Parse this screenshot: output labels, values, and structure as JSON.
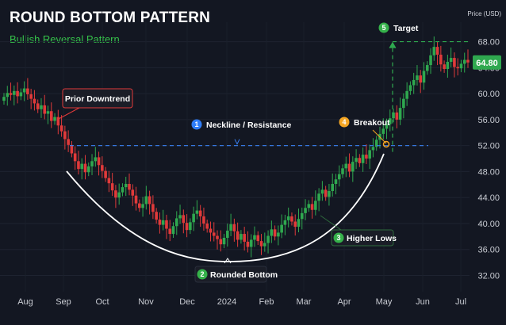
{
  "header": {
    "title": "ROUND BOTTOM PATTERN",
    "subtitle": "Bullish Reversal Pattern",
    "price_axis_unit": "Price (USD)"
  },
  "colors": {
    "background": "#131722",
    "bull": "#2fa84f",
    "bear": "#e03a3a",
    "neckline": "#3b82f6",
    "target": "#2fa84f",
    "curve": "#ffffff",
    "badge_blue": "#2f7df6",
    "badge_green": "#35b14a",
    "badge_orange": "#f5a623"
  },
  "chart_data": {
    "type": "candlestick",
    "x_ticks": [
      "Aug",
      "Sep",
      "Oct",
      "Nov",
      "Dec",
      "2024",
      "Feb",
      "Mar",
      "Apr",
      "May",
      "Jun",
      "Jul"
    ],
    "y_ticks": [
      32.0,
      36.0,
      40.0,
      44.0,
      48.0,
      52.0,
      56.0,
      60.0,
      64.0,
      68.0
    ],
    "ylim": [
      29.5,
      71
    ],
    "last_price": "64.80",
    "neckline_price": 52.0,
    "target_price": 68.0,
    "annotations": [
      {
        "id": "downtrend",
        "label": "Prior Downtrend",
        "number": ""
      },
      {
        "id": "neckline",
        "label": "Neckline / Resistance",
        "number": "1"
      },
      {
        "id": "rounded",
        "label": "Rounded Bottom",
        "number": "2"
      },
      {
        "id": "higherlows",
        "label": "Higher Lows",
        "number": "3"
      },
      {
        "id": "breakout",
        "label": "Breakout",
        "number": "4"
      },
      {
        "id": "target",
        "label": "Target",
        "number": "5"
      }
    ],
    "series": [
      {
        "close_path": [
          59.5,
          60.1,
          59.8,
          60.4,
          59.6,
          60.2,
          60.8,
          59.9,
          59.2,
          58.5,
          57.6,
          58.2,
          56.9,
          57.3,
          55.8,
          56.4,
          55.1,
          54.2,
          53.0,
          52.1,
          50.8,
          49.6,
          48.4,
          49.2,
          47.9,
          48.8,
          49.6,
          50.2,
          49.0,
          48.1,
          47.0,
          46.2,
          45.1,
          44.0,
          44.8,
          45.6,
          46.1,
          45.2,
          44.3,
          43.1,
          42.4,
          43.0,
          44.2,
          43.0,
          41.8,
          40.6,
          39.8,
          40.5,
          39.2,
          38.4,
          39.6,
          40.8,
          41.3,
          40.1,
          39.0,
          40.2,
          41.5,
          42.0,
          41.1,
          40.0,
          39.2,
          38.6,
          38.1,
          37.6,
          36.8,
          37.8,
          38.9,
          39.9,
          38.8,
          37.5,
          38.4,
          37.2,
          36.4,
          37.5,
          38.2,
          37.3,
          36.5,
          37.0,
          38.1,
          39.1,
          38.0,
          38.6,
          39.8,
          40.5,
          41.1,
          40.3,
          39.5,
          40.7,
          41.6,
          42.4,
          43.0,
          42.1,
          43.5,
          44.6,
          45.2,
          44.1,
          45.0,
          46.1,
          46.8,
          47.6,
          48.5,
          49.2,
          48.0,
          49.5,
          50.1,
          49.3,
          50.6,
          50.0,
          51.3,
          51.8,
          52.9,
          53.8,
          54.6,
          55.3,
          56.2,
          57.1,
          56.0,
          57.8,
          59.2,
          60.4,
          61.3,
          62.1,
          62.8,
          61.7,
          63.5,
          64.4,
          65.9,
          67.2,
          66.0,
          64.5,
          63.8,
          64.9,
          65.5,
          64.1,
          63.9,
          64.6,
          65.2,
          64.8
        ]
      }
    ]
  }
}
